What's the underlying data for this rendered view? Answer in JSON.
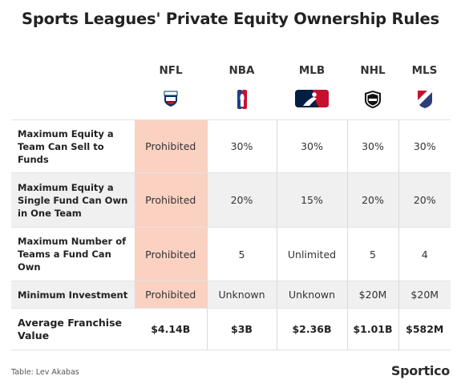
{
  "title": "Sports Leagues' Private Equity Ownership Rules",
  "leagues": [
    {
      "abbr": "NFL",
      "logo_icon": "nfl-shield-logo"
    },
    {
      "abbr": "NBA",
      "logo_icon": "nba-logo"
    },
    {
      "abbr": "MLB",
      "logo_icon": "mlb-logo"
    },
    {
      "abbr": "NHL",
      "logo_icon": "nhl-shield-logo"
    },
    {
      "abbr": "MLS",
      "logo_icon": "mls-crest-logo"
    }
  ],
  "rows": [
    {
      "label": "Maximum Equity a Team Can Sell to Funds",
      "values": [
        "Prohibited",
        "30%",
        "30%",
        "30%",
        "30%"
      ]
    },
    {
      "label": "Maximum Equity a Single Fund Can Own in One Team",
      "values": [
        "Prohibited",
        "20%",
        "15%",
        "20%",
        "20%"
      ]
    },
    {
      "label": "Maximum Number of Teams a Fund Can Own",
      "values": [
        "Prohibited",
        "5",
        "Unlimited",
        "5",
        "4"
      ]
    },
    {
      "label": "Minimum Investment",
      "values": [
        "Prohibited",
        "Unknown",
        "Unknown",
        "$20M",
        "$20M"
      ]
    },
    {
      "label": "Average Franchise Value",
      "values": [
        "$4.14B",
        "$3B",
        "$2.36B",
        "$1.01B",
        "$582M"
      ]
    }
  ],
  "source": "Table: Lev Akabas",
  "brand": "Sportico",
  "colors": {
    "highlight": "#fbd1c2",
    "alt_row": "#f0f0f0",
    "nfl_blue": "#013369",
    "mlb_blue": "#041e42",
    "mlb_red": "#c8102e"
  }
}
